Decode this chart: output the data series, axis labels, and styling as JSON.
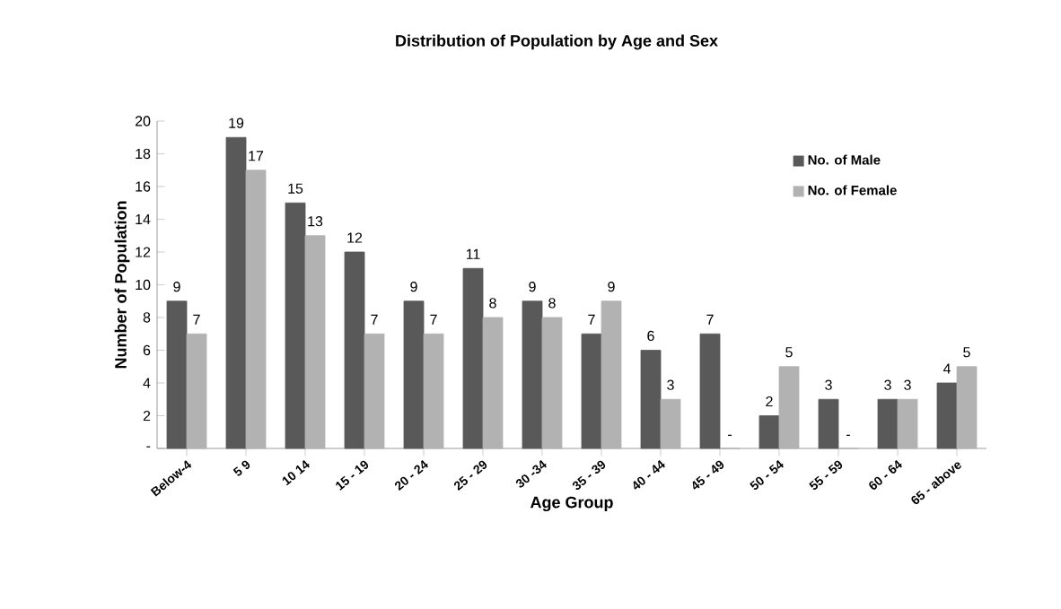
{
  "chart_data": {
    "type": "bar",
    "title": "Distribution of Population by Age and Sex",
    "xlabel": "Age Group",
    "ylabel": "Number of Population",
    "categories": [
      "Below-4",
      "5 9",
      "10 14",
      "15 - 19",
      "20 - 24",
      "25 - 29",
      "30 -34",
      "35 - 39",
      "40 - 44",
      "45 - 49",
      "50 - 54",
      "55 - 59",
      "60 - 64",
      "65 - above"
    ],
    "series": [
      {
        "name": "No. of Male",
        "color": "#595959",
        "values": [
          9,
          19,
          15,
          12,
          9,
          11,
          9,
          7,
          6,
          7,
          2,
          3,
          3,
          4
        ],
        "value_labels": [
          "9",
          "19",
          "15",
          "12",
          "9",
          "11",
          "9",
          "7",
          "6",
          "7",
          "2",
          "3",
          "3",
          "4"
        ]
      },
      {
        "name": "No. of Female",
        "color": "#b2b2b2",
        "values": [
          7,
          17,
          13,
          7,
          7,
          8,
          8,
          9,
          3,
          0,
          5,
          0,
          3,
          5
        ],
        "value_labels": [
          "7",
          "17",
          "13",
          "7",
          "7",
          "8",
          "8",
          "9",
          "3",
          "-",
          "5",
          "-",
          "3",
          "5"
        ]
      }
    ],
    "ylim": [
      0,
      20
    ],
    "yticks": [
      {
        "value": 0,
        "label": "-"
      },
      2,
      4,
      6,
      8,
      10,
      12,
      14,
      16,
      18,
      20
    ],
    "legend": "top right",
    "grid": false
  }
}
